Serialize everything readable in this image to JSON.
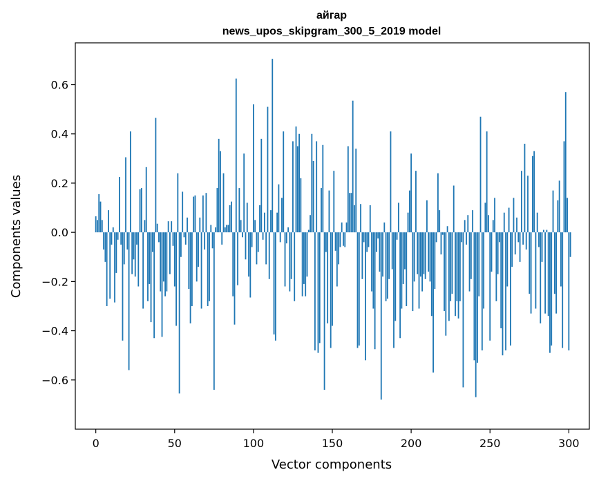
{
  "chart_data": {
    "type": "bar",
    "title": "айгар",
    "subtitle": "news_upos_skipgram_300_5_2019 model",
    "xlabel": "Vector components",
    "ylabel": "Components values",
    "xlim": [
      -13,
      313
    ],
    "ylim": [
      -0.8,
      0.77
    ],
    "xticks": [
      0,
      50,
      100,
      150,
      200,
      250,
      300
    ],
    "yticks": [
      -0.6,
      -0.4,
      -0.2,
      0.0,
      0.2,
      0.4,
      0.6
    ],
    "ytick_labels": [
      "−0.6",
      "−0.4",
      "−0.2",
      "0.0",
      "0.2",
      "0.4",
      "0.6"
    ],
    "grid": false,
    "bar_color": "#1f77b4",
    "values": [
      0.065,
      0.05,
      0.155,
      0.125,
      0.05,
      -0.07,
      -0.12,
      -0.3,
      0.09,
      -0.27,
      -0.05,
      0.02,
      -0.285,
      -0.165,
      -0.03,
      0.225,
      -0.05,
      -0.44,
      -0.13,
      0.305,
      -0.07,
      -0.56,
      0.41,
      -0.17,
      -0.11,
      -0.18,
      -0.05,
      -0.22,
      0.175,
      0.18,
      -0.31,
      0.05,
      0.265,
      -0.28,
      -0.21,
      -0.365,
      -0.08,
      -0.43,
      0.465,
      0.035,
      -0.04,
      -0.24,
      -0.425,
      -0.2,
      -0.26,
      -0.24,
      0.045,
      -0.17,
      0.045,
      -0.055,
      -0.22,
      -0.38,
      0.24,
      -0.655,
      -0.1,
      0.165,
      -0.02,
      -0.05,
      0.06,
      -0.23,
      -0.37,
      -0.3,
      0.145,
      0.15,
      -0.2,
      -0.14,
      0.06,
      -0.31,
      0.15,
      -0.07,
      0.16,
      -0.3,
      -0.28,
      0.03,
      -0.065,
      -0.64,
      0.02,
      0.18,
      0.38,
      0.33,
      -0.05,
      0.24,
      0.02,
      0.03,
      0.03,
      0.11,
      0.125,
      -0.26,
      -0.375,
      0.625,
      -0.215,
      0.18,
      0.05,
      -0.02,
      0.32,
      -0.11,
      0.12,
      -0.18,
      -0.265,
      -0.06,
      0.52,
      0.05,
      -0.13,
      -0.08,
      0.11,
      0.38,
      -0.03,
      0.08,
      -0.13,
      0.51,
      -0.19,
      0.09,
      0.705,
      -0.415,
      -0.44,
      0.08,
      0.195,
      -0.04,
      0.14,
      0.41,
      -0.22,
      -0.045,
      0.02,
      -0.24,
      -0.19,
      0.37,
      -0.28,
      0.43,
      0.35,
      0.4,
      0.22,
      -0.26,
      -0.21,
      -0.26,
      -0.18,
      0.01,
      0.07,
      0.4,
      0.29,
      -0.48,
      0.37,
      -0.49,
      -0.45,
      0.18,
      0.355,
      -0.64,
      -0.08,
      -0.37,
      0.17,
      -0.47,
      -0.38,
      0.25,
      -0.075,
      -0.22,
      -0.13,
      -0.06,
      0.04,
      -0.055,
      -0.06,
      0.04,
      0.35,
      0.16,
      0.16,
      0.535,
      0.11,
      0.34,
      -0.47,
      -0.46,
      0.115,
      -0.19,
      -0.04,
      -0.52,
      -0.08,
      -0.06,
      0.11,
      -0.24,
      -0.31,
      -0.475,
      -0.08,
      -0.025,
      -0.16,
      -0.68,
      -0.18,
      0.04,
      -0.28,
      -0.27,
      -0.19,
      0.41,
      -0.15,
      -0.47,
      -0.36,
      -0.03,
      0.12,
      -0.43,
      -0.31,
      -0.21,
      -0.15,
      -0.3,
      0.08,
      0.17,
      0.32,
      -0.32,
      -0.2,
      0.25,
      -0.17,
      -0.31,
      -0.18,
      -0.24,
      -0.17,
      -0.19,
      0.13,
      -0.16,
      -0.2,
      -0.34,
      -0.57,
      -0.23,
      -0.04,
      0.24,
      0.09,
      -0.09,
      -0.01,
      -0.32,
      -0.42,
      0.025,
      -0.36,
      -0.28,
      -0.25,
      0.19,
      -0.34,
      -0.28,
      -0.35,
      -0.28,
      -0.04,
      -0.63,
      0.05,
      -0.05,
      0.07,
      -0.24,
      -0.19,
      0.09,
      -0.52,
      -0.67,
      -0.53,
      -0.26,
      0.47,
      -0.48,
      -0.31,
      0.12,
      0.41,
      0.07,
      -0.44,
      -0.16,
      0.05,
      0.14,
      -0.28,
      -0.17,
      -0.04,
      -0.39,
      -0.5,
      0.08,
      -0.48,
      -0.22,
      0.1,
      -0.46,
      -0.14,
      0.14,
      -0.09,
      0.06,
      -0.04,
      -0.12,
      0.25,
      -0.05,
      0.36,
      -0.07,
      0.23,
      -0.25,
      -0.33,
      0.31,
      0.33,
      -0.31,
      0.08,
      -0.06,
      -0.37,
      -0.12,
      0.01,
      -0.33,
      0.01,
      -0.34,
      -0.49,
      -0.46,
      0.17,
      -0.25,
      -0.33,
      0.13,
      0.21,
      -0.22,
      -0.47,
      0.37,
      0.57,
      0.14,
      -0.48,
      -0.1
    ]
  }
}
